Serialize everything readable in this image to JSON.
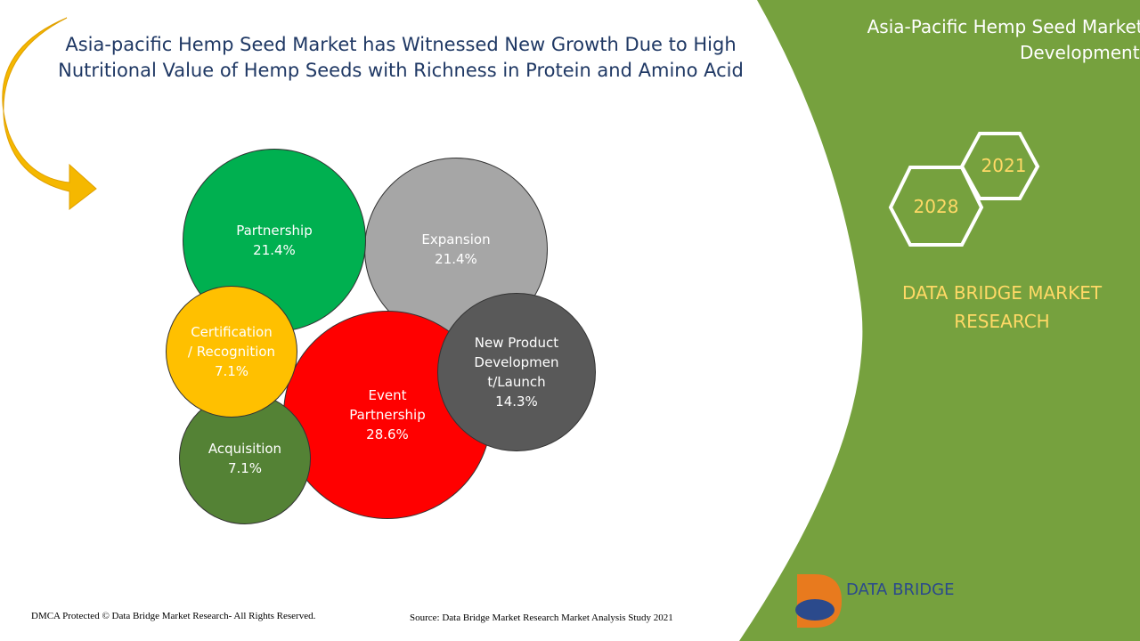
{
  "header": {
    "panel_title": "Asia-Pacific Hemp Seed Market, Developments",
    "years": [
      "2021",
      "2028"
    ],
    "brand": "DATA BRIDGE MARKET RESEARCH"
  },
  "chart_data": {
    "type": "bubble",
    "title": "Asia-pacific Hemp Seed Market has Witnessed New Growth Due to High Nutritional Value of Hemp Seeds with Richness in Protein and Amino Acid",
    "categories": [
      "Expansion",
      "Partnership",
      "Event Partnership",
      "New Product Development/Launch",
      "Acquisition",
      "Certification / Recognition"
    ],
    "values": [
      21.4,
      21.4,
      28.6,
      14.3,
      7.1,
      7.1
    ],
    "value_labels": [
      "21.4%",
      "21.4%",
      "28.6%",
      "14.3%",
      "7.1%",
      "7.1%"
    ],
    "colors": [
      "#a6a6a6",
      "#00b050",
      "#ff0000",
      "#595959",
      "#548235",
      "#ffc000"
    ]
  },
  "footer": {
    "copyright": "DMCA Protected © Data Bridge Market Research- All Rights Reserved.",
    "source": "Source: Data Bridge Market Research Market Analysis Study 2021",
    "logo": "DATA BRIDGE"
  }
}
